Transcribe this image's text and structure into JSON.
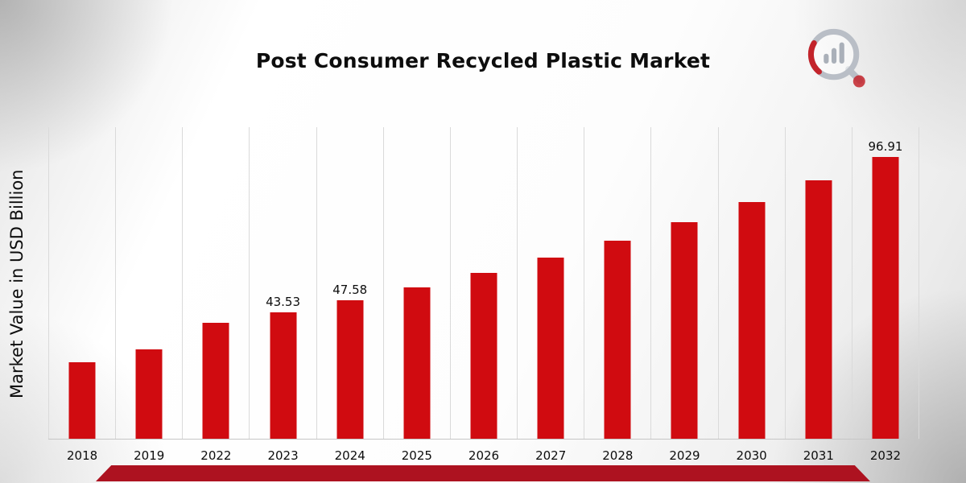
{
  "page": {
    "title": "Post Consumer Recycled Plastic Market"
  },
  "branding": {
    "logo_icon": "market-research-future-logo"
  },
  "chart_data": {
    "type": "bar",
    "title": "Post Consumer Recycled Plastic Market",
    "xlabel": "",
    "ylabel": "Market Value in USD Billion",
    "categories": [
      "2018",
      "2019",
      "2022",
      "2023",
      "2024",
      "2025",
      "2026",
      "2027",
      "2028",
      "2029",
      "2030",
      "2031",
      "2032"
    ],
    "values": [
      26.4,
      30.6,
      39.9,
      43.53,
      47.58,
      52.01,
      56.85,
      62.14,
      67.93,
      74.25,
      81.16,
      88.72,
      96.91
    ],
    "bar_labels": [
      "",
      "",
      "",
      "43.53",
      "47.58",
      "",
      "",
      "",
      "",
      "",
      "",
      "",
      "96.91"
    ],
    "ylim": [
      0,
      107
    ],
    "grid": "vertical-only",
    "legend": "none",
    "bar_color": "#d00b10",
    "ribbon_color": "#ad1220"
  }
}
